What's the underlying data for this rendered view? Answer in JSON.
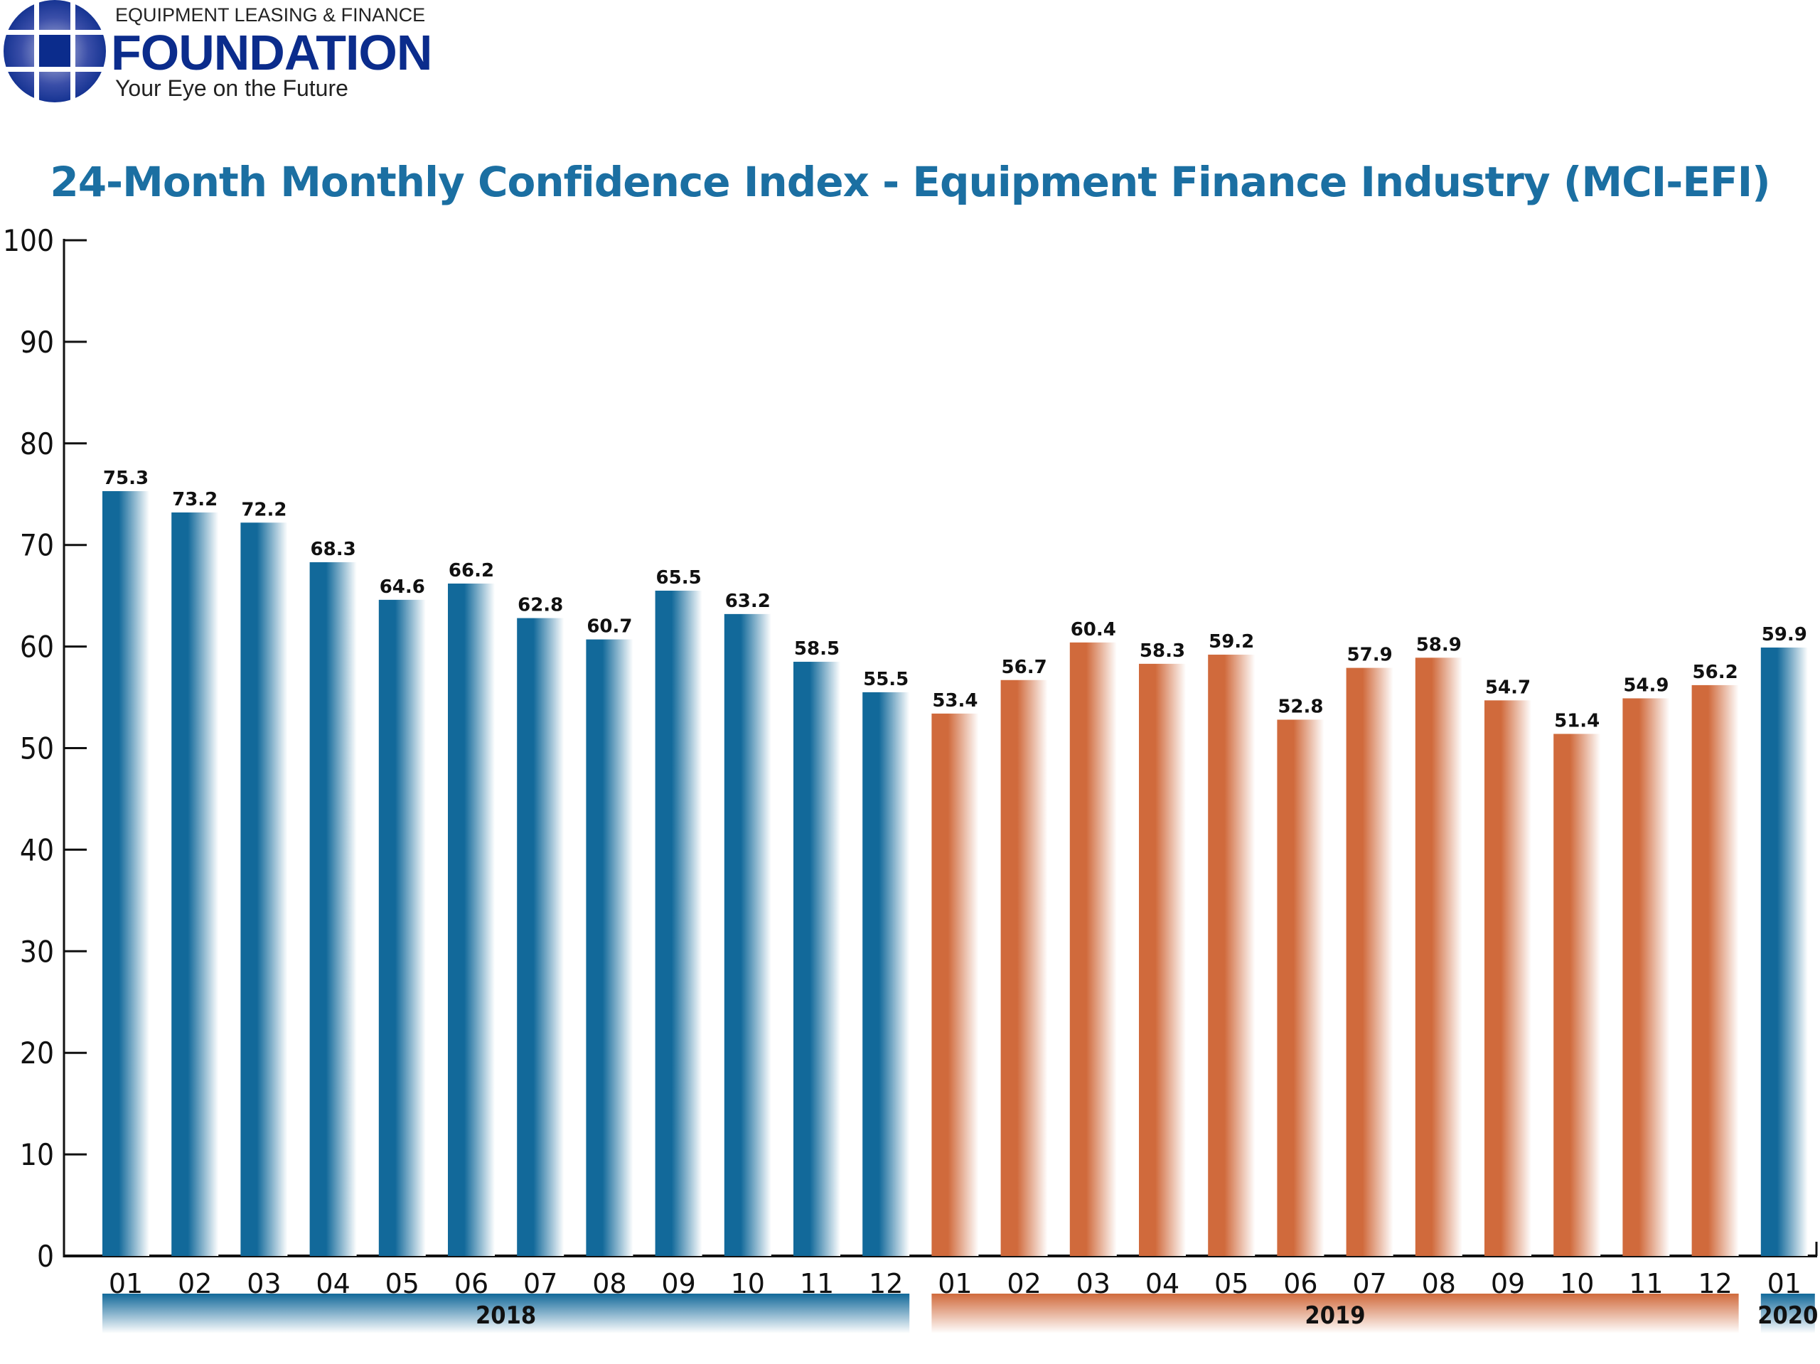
{
  "logo": {
    "line1": "EQUIPMENT LEASING & FINANCE",
    "name": "FOUNDATION",
    "tagline": "Your Eye on the Future",
    "color": "#0b2c8c"
  },
  "chart_data": {
    "type": "bar",
    "title": "24-Month Monthly Confidence Index - Equipment Finance Industry (MCI-EFI)",
    "xlabel": "",
    "ylabel": "",
    "ylim": [
      0,
      100
    ],
    "yticks": [
      0,
      10,
      20,
      30,
      40,
      50,
      60,
      70,
      80,
      90,
      100
    ],
    "grid": false,
    "categories": [
      "01",
      "02",
      "03",
      "04",
      "05",
      "06",
      "07",
      "08",
      "09",
      "10",
      "11",
      "12",
      "01",
      "02",
      "03",
      "04",
      "05",
      "06",
      "07",
      "08",
      "09",
      "10",
      "11",
      "12",
      "01"
    ],
    "years": [
      "2018",
      "2018",
      "2018",
      "2018",
      "2018",
      "2018",
      "2018",
      "2018",
      "2018",
      "2018",
      "2018",
      "2018",
      "2019",
      "2019",
      "2019",
      "2019",
      "2019",
      "2019",
      "2019",
      "2019",
      "2019",
      "2019",
      "2019",
      "2019",
      "2020"
    ],
    "values": [
      75.3,
      73.2,
      72.2,
      68.3,
      64.6,
      66.2,
      62.8,
      60.7,
      65.5,
      63.2,
      58.5,
      55.5,
      53.4,
      56.7,
      60.4,
      58.3,
      59.2,
      52.8,
      57.9,
      58.9,
      54.7,
      51.4,
      54.9,
      56.2,
      59.9
    ],
    "year_groups": [
      {
        "label": "2018",
        "start": 0,
        "end": 11,
        "color": "#12699a"
      },
      {
        "label": "2019",
        "start": 12,
        "end": 23,
        "color": "#d06a3c"
      },
      {
        "label": "2020",
        "start": 24,
        "end": 24,
        "color": "#12699a"
      }
    ]
  }
}
